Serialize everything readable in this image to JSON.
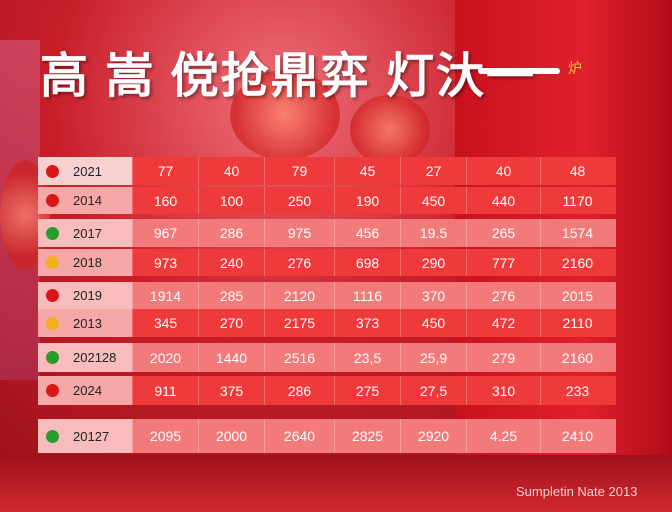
{
  "title": {
    "main": "高 嵩 傥抢鼎弈 灯汏一",
    "seal": "炉"
  },
  "table": {
    "rows": [
      {
        "label": "2021",
        "icon_color": "#d81818",
        "values": [
          "77",
          "40",
          "79",
          "45",
          "27",
          "40",
          "48"
        ]
      },
      {
        "label": "2014",
        "icon_color": "#d81818",
        "values": [
          "160",
          "100",
          "250",
          "190",
          "450",
          "440",
          "1170"
        ]
      },
      {
        "label": "2017",
        "icon_color": "#2a9a2a",
        "values": [
          "967",
          "286",
          "975",
          "456",
          "19.5",
          "265",
          "1574"
        ]
      },
      {
        "label": "2018",
        "icon_color": "#f0b020",
        "values": [
          "973",
          "240",
          "276",
          "698",
          "290",
          "777",
          "2160"
        ]
      },
      {
        "label": "2019",
        "icon_color": "#d81818",
        "values": [
          "1914",
          "285",
          "2120",
          "1116",
          "370",
          "276",
          "2015"
        ]
      },
      {
        "label": "2013",
        "icon_color": "#f0b020",
        "values": [
          "345",
          "270",
          "2175",
          "373",
          "450",
          "472",
          "2110"
        ]
      },
      {
        "label": "202128",
        "icon_color": "#2a9a2a",
        "values": [
          "2020",
          "1440",
          "2516",
          "23,5",
          "25,9",
          "279",
          "2160"
        ]
      },
      {
        "label": "2024",
        "icon_color": "#d81818",
        "values": [
          "911",
          "375",
          "286",
          "275",
          "27,5",
          "310",
          "233"
        ]
      },
      {
        "label": "20127",
        "icon_color": "#2a9a2a",
        "values": [
          "2095",
          "2000",
          "2640",
          "2825",
          "2920",
          "4.25",
          "2410"
        ]
      }
    ]
  },
  "footer": "Sumpletin Nate 2013"
}
